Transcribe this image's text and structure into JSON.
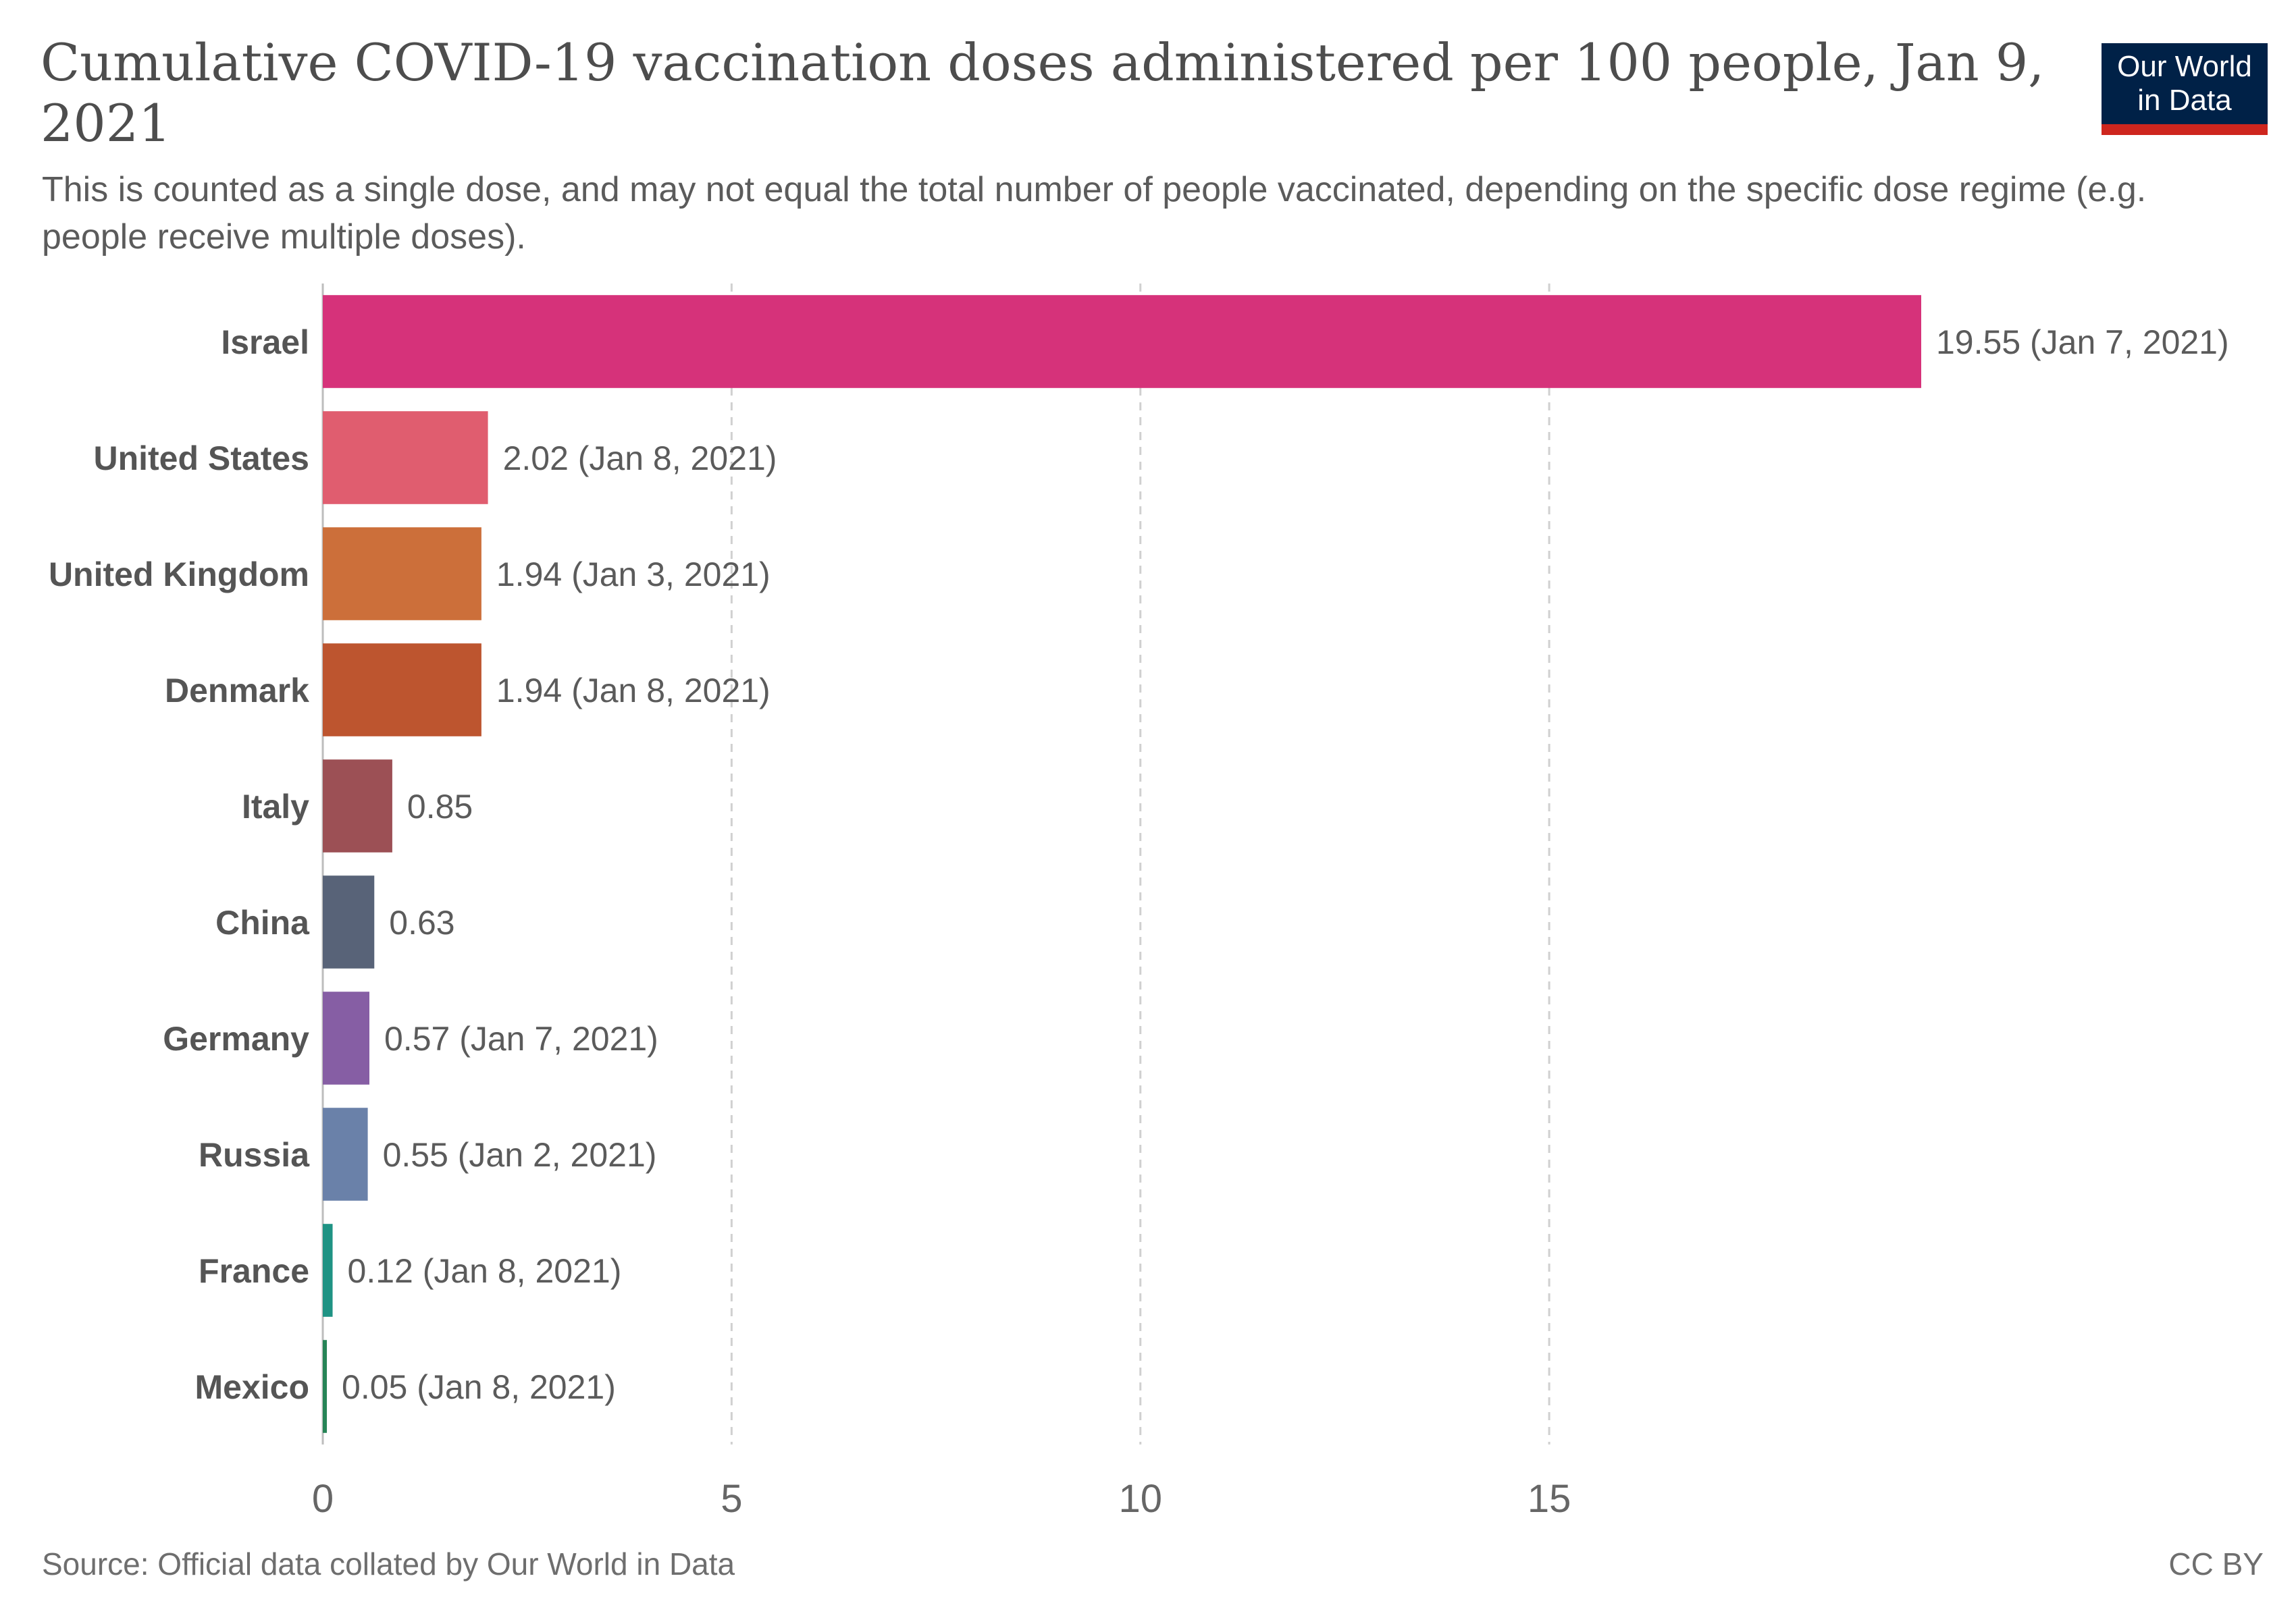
{
  "title": "Cumulative COVID-19 vaccination doses administered per 100 people, Jan 9, 2021",
  "subtitle": "This is counted as a single dose, and may not equal the total number of people vaccinated, depending on the specific dose regime (e.g. people receive multiple doses).",
  "logo": {
    "line1": "Our World",
    "line2": "in Data"
  },
  "source": "Source: Official data collated by Our World in Data",
  "license": "CC BY",
  "colors": {
    "logo_background": "#002147",
    "logo_accent": "#ce261e",
    "grid": "#d0d0d0",
    "label_text": "#555555",
    "value_text": "#5b5b5b"
  },
  "chart_data": {
    "type": "bar",
    "orientation": "horizontal",
    "title": "Cumulative COVID-19 vaccination doses administered per 100 people, Jan 9, 2021",
    "xlabel": "",
    "ylabel": "",
    "xlim": [
      0,
      19.55
    ],
    "xticks": [
      0,
      5,
      10,
      15
    ],
    "grid": "vertical dashed",
    "legend": "none",
    "categories": [
      "Israel",
      "United States",
      "United Kingdom",
      "Denmark",
      "Italy",
      "China",
      "Germany",
      "Russia",
      "France",
      "Mexico"
    ],
    "values": [
      19.55,
      2.02,
      1.94,
      1.94,
      0.85,
      0.63,
      0.57,
      0.55,
      0.12,
      0.05
    ],
    "value_labels": [
      "19.55 (Jan 7, 2021)",
      "2.02 (Jan 8, 2021)",
      "1.94 (Jan 3, 2021)",
      "1.94 (Jan 8, 2021)",
      "0.85",
      "0.63",
      "0.57 (Jan 7, 2021)",
      "0.55 (Jan 2, 2021)",
      "0.12 (Jan 8, 2021)",
      "0.05 (Jan 8, 2021)"
    ],
    "bar_colors": [
      "#d6327a",
      "#e05d6f",
      "#cc6f3a",
      "#bd552f",
      "#9c5055",
      "#586378",
      "#865ea4",
      "#6a81a9",
      "#1f9384",
      "#268456"
    ]
  }
}
